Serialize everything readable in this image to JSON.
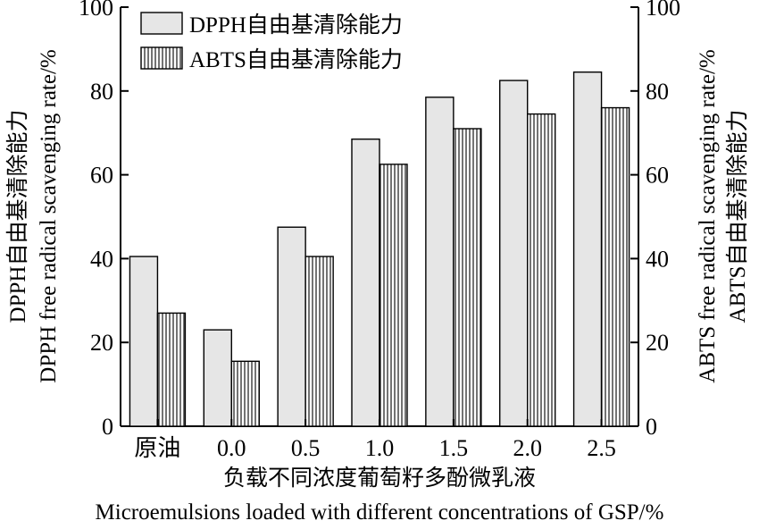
{
  "chart_data": {
    "type": "bar",
    "categories": [
      "原油",
      "0.0",
      "0.5",
      "1.0",
      "1.5",
      "2.0",
      "2.5"
    ],
    "series": [
      {
        "name": "DPPH自由基清除能力",
        "values": [
          40.5,
          23.0,
          47.5,
          68.5,
          78.5,
          82.5,
          84.5
        ],
        "fill": "solid",
        "color": "#e6e6e6"
      },
      {
        "name": "ABTS自由基清除能力",
        "values": [
          27.0,
          15.5,
          40.5,
          62.5,
          71.0,
          74.5,
          76.0
        ],
        "fill": "vertical-hatch",
        "color": "#ffffff"
      }
    ],
    "ylim": [
      0,
      100
    ],
    "yticks": [
      0,
      20,
      40,
      60,
      80,
      100
    ],
    "y2lim": [
      0,
      100
    ],
    "y2ticks": [
      0,
      20,
      40,
      60,
      80,
      100
    ],
    "xlabel_cn": "负载不同浓度葡萄籽多酚微乳液",
    "xlabel_en": "Microemulsions loaded with different concentrations of GSP/%",
    "ylabel_cn": "DPPH自由基清除能力",
    "ylabel_en": "DPPH free radical scavenging rate/%",
    "y2label_cn": "ABTS自由基清除能力",
    "y2label_en": "ABTS free radical scavenging rate/%",
    "legend_position": "top-left",
    "grid": false
  }
}
